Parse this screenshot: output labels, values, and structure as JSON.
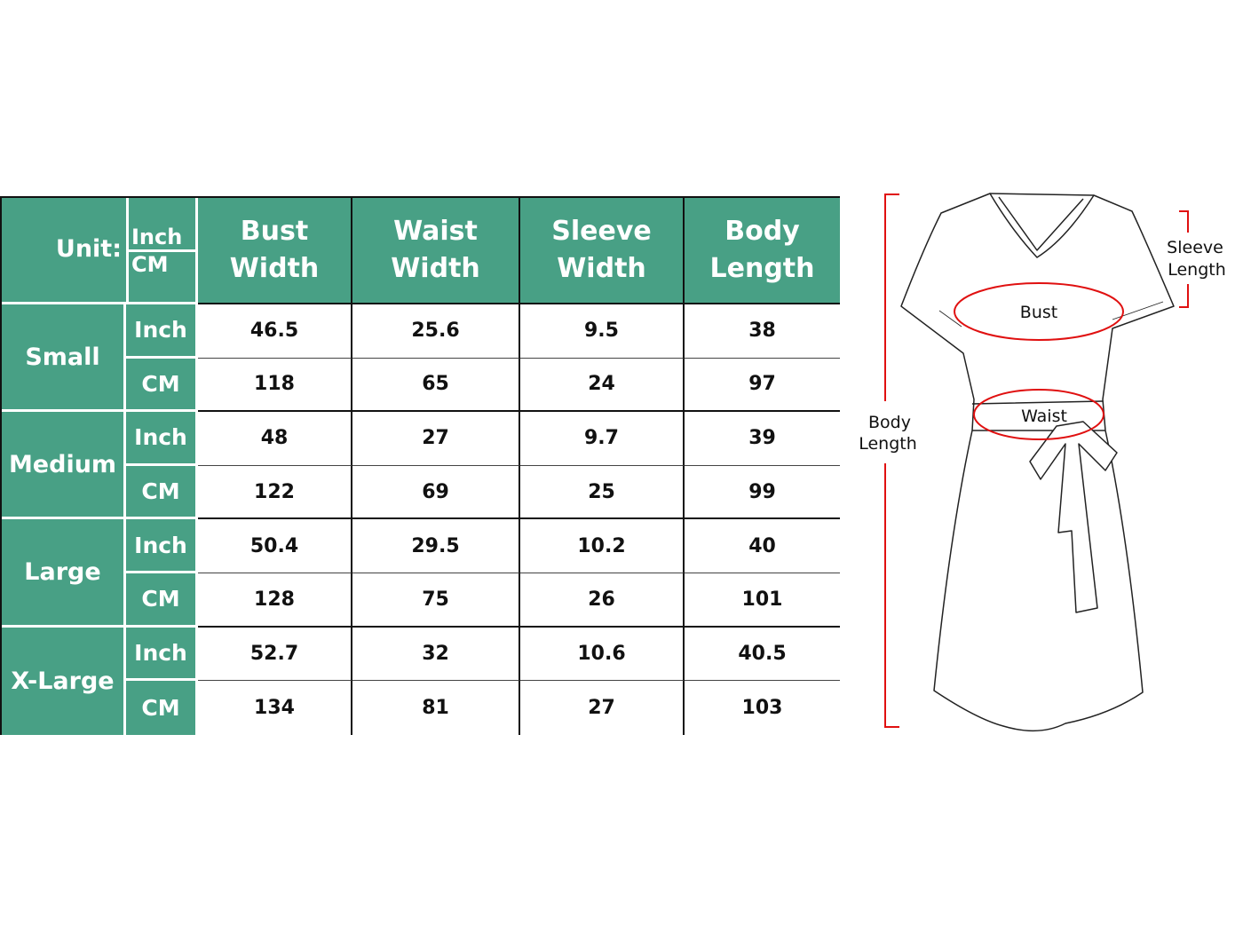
{
  "table": {
    "unit_label": "Unit:",
    "unit_options": [
      "Inch",
      "CM"
    ],
    "headers": [
      [
        "Bust",
        "Width"
      ],
      [
        "Waist",
        "Width"
      ],
      [
        "Sleeve",
        "Width"
      ],
      [
        "Body",
        "Length"
      ]
    ],
    "sizes": [
      {
        "name": "Small",
        "rows": [
          {
            "unit": "Inch",
            "values": [
              "46.5",
              "25.6",
              "9.5",
              "38"
            ]
          },
          {
            "unit": "CM",
            "values": [
              "118",
              "65",
              "24",
              "97"
            ]
          }
        ]
      },
      {
        "name": "Medium",
        "rows": [
          {
            "unit": "Inch",
            "values": [
              "48",
              "27",
              "9.7",
              "39"
            ]
          },
          {
            "unit": "CM",
            "values": [
              "122",
              "69",
              "25",
              "99"
            ]
          }
        ]
      },
      {
        "name": "Large",
        "rows": [
          {
            "unit": "Inch",
            "values": [
              "50.4",
              "29.5",
              "10.2",
              "40"
            ]
          },
          {
            "unit": "CM",
            "values": [
              "128",
              "75",
              "26",
              "101"
            ]
          }
        ]
      },
      {
        "name": "X-Large",
        "rows": [
          {
            "unit": "Inch",
            "values": [
              "52.7",
              "32",
              "10.6",
              "40.5"
            ]
          },
          {
            "unit": "CM",
            "values": [
              "134",
              "81",
              "27",
              "103"
            ]
          }
        ]
      }
    ]
  },
  "diagram": {
    "bust": "Bust",
    "waist": "Waist",
    "body_length": [
      "Body",
      "Length"
    ],
    "sleeve_length": [
      "Sleeve",
      "Length"
    ]
  },
  "colors": {
    "header_green": "#48a085",
    "measure_red": "#e01010"
  }
}
